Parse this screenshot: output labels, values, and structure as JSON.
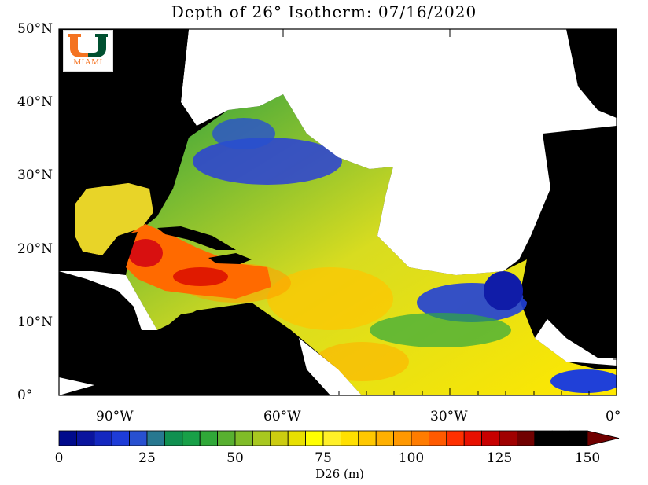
{
  "title": "Depth of 26° Isotherm: 07/16/2020",
  "lat_labels": [
    "50°N",
    "40°N",
    "30°N",
    "20°N",
    "10°N",
    "0°"
  ],
  "lon_labels": [
    "90°W",
    "60°W",
    "30°W",
    "0°"
  ],
  "colorbar": {
    "label": "D26 (m)",
    "ticks": [
      "0",
      "25",
      "50",
      "75",
      "100",
      "125",
      "150"
    ],
    "min": 0,
    "max": 150,
    "step": 5,
    "colors": [
      "#000a8c",
      "#0a149e",
      "#1428c0",
      "#1e3cd8",
      "#2850d0",
      "#287890",
      "#109050",
      "#18a048",
      "#30a838",
      "#58b030",
      "#80bc28",
      "#a8c820",
      "#cccc10",
      "#e8e000",
      "#ffff00",
      "#fff028",
      "#ffe000",
      "#ffc800",
      "#ffb000",
      "#ff9800",
      "#ff7c00",
      "#ff5a00",
      "#ff3000",
      "#e81000",
      "#c80000",
      "#a00000",
      "#700000"
    ]
  },
  "logo": {
    "text": "MIAMI",
    "colors": {
      "orange": "#f47321",
      "green": "#005030"
    }
  }
}
